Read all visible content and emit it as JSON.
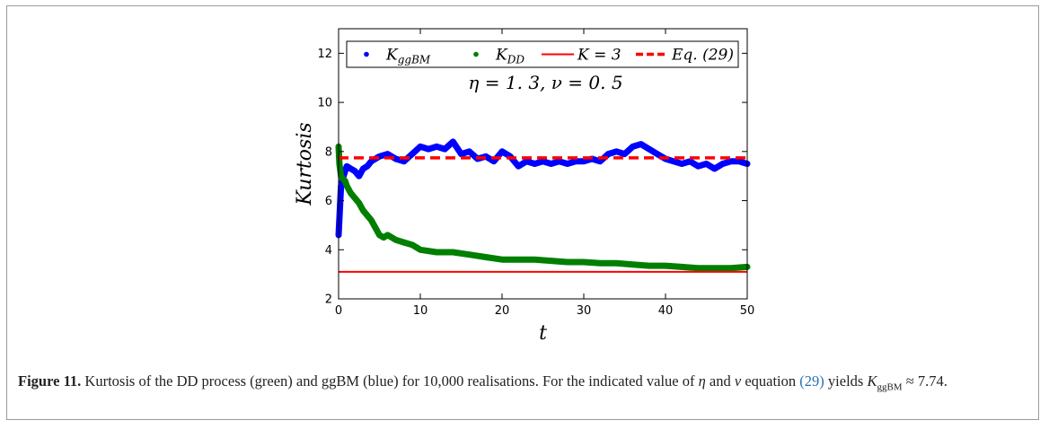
{
  "chart_data": {
    "type": "line",
    "xlabel": "t",
    "ylabel": "Kurtosis",
    "xlim": [
      0,
      50
    ],
    "ylim": [
      2,
      13
    ],
    "x_ticks": [
      "0",
      "10",
      "20",
      "30",
      "40",
      "50"
    ],
    "x_tick_values": [
      0,
      10,
      20,
      30,
      40,
      50
    ],
    "y_ticks": [
      "2",
      "4",
      "6",
      "8",
      "10",
      "12"
    ],
    "y_tick_values": [
      2,
      4,
      6,
      8,
      10,
      12
    ],
    "grid": false,
    "legend_position": "top",
    "annotation": "η = 1. 3,  ν = 0. 5",
    "series": [
      {
        "name": "K_ggBM",
        "label_main": "K",
        "label_sub": "ggBM",
        "color": "#0000ff",
        "style": "markers",
        "x": [
          0,
          0.3,
          0.6,
          1,
          1.5,
          2,
          2.5,
          3,
          3.5,
          4,
          5,
          6,
          7,
          8,
          9,
          10,
          11,
          12,
          13,
          14,
          15,
          16,
          17,
          18,
          19,
          20,
          21,
          22,
          23,
          24,
          25,
          26,
          27,
          28,
          29,
          30,
          31,
          32,
          33,
          34,
          35,
          36,
          37,
          38,
          39,
          40,
          41,
          42,
          43,
          44,
          45,
          46,
          47,
          48,
          49,
          50
        ],
        "y": [
          4.6,
          6.6,
          7.0,
          7.4,
          7.3,
          7.2,
          7.0,
          7.3,
          7.4,
          7.6,
          7.8,
          7.9,
          7.7,
          7.6,
          7.9,
          8.2,
          8.1,
          8.2,
          8.1,
          8.4,
          7.9,
          8.0,
          7.7,
          7.8,
          7.6,
          8.0,
          7.8,
          7.4,
          7.6,
          7.5,
          7.6,
          7.5,
          7.6,
          7.5,
          7.6,
          7.6,
          7.7,
          7.6,
          7.9,
          8.0,
          7.9,
          8.2,
          8.3,
          8.1,
          7.9,
          7.7,
          7.6,
          7.5,
          7.6,
          7.4,
          7.5,
          7.3,
          7.5,
          7.6,
          7.6,
          7.5
        ]
      },
      {
        "name": "K_DD",
        "label_main": "K",
        "label_sub": "DD",
        "color": "#007f00",
        "style": "markers",
        "x": [
          0,
          0.1,
          0.3,
          0.5,
          0.8,
          1,
          1.5,
          2,
          2.5,
          3,
          3.5,
          4,
          4.5,
          5,
          5.5,
          6,
          7,
          8,
          9,
          10,
          12,
          14,
          16,
          18,
          20,
          22,
          24,
          26,
          28,
          30,
          32,
          34,
          36,
          38,
          40,
          42,
          44,
          46,
          48,
          50
        ],
        "y": [
          8.2,
          7.5,
          7.0,
          6.9,
          6.8,
          6.6,
          6.3,
          6.1,
          5.9,
          5.6,
          5.4,
          5.2,
          4.9,
          4.6,
          4.5,
          4.6,
          4.4,
          4.3,
          4.2,
          4.0,
          3.9,
          3.9,
          3.8,
          3.7,
          3.6,
          3.6,
          3.6,
          3.55,
          3.5,
          3.5,
          3.45,
          3.45,
          3.4,
          3.35,
          3.35,
          3.3,
          3.25,
          3.25,
          3.25,
          3.3
        ]
      },
      {
        "name": "K = 3",
        "label_main": "K = 3",
        "color": "#ff0000",
        "style": "solid",
        "x": [
          0,
          50
        ],
        "y": [
          3.1,
          3.1
        ]
      },
      {
        "name": "Eq. (29)",
        "label_main": "Eq. (29)",
        "color": "#ff0000",
        "style": "dashed",
        "x": [
          0,
          50
        ],
        "y": [
          7.74,
          7.74
        ]
      }
    ]
  },
  "caption": {
    "label": "Figure 11.",
    "text_1": " Kurtosis of the DD process (green) and ggBM (blue) for 10,000 realisations. For the indicated value of ",
    "eta": "η",
    "text_2": " and ",
    "nu": "ν",
    "text_3": " equation ",
    "ref": "(29)",
    "text_4": " yields ",
    "k_main": "K",
    "k_sub": "ggBM",
    "text_5": " ≈ 7.74."
  }
}
